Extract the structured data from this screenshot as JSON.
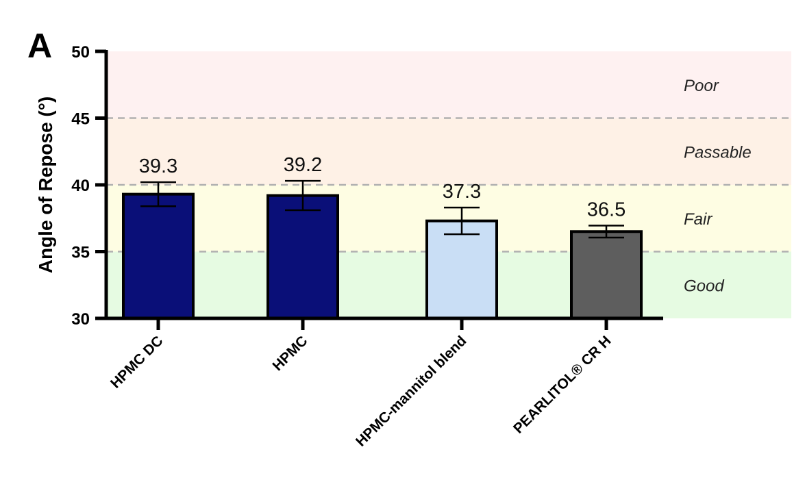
{
  "panel_label": "A",
  "chart_data": {
    "type": "bar",
    "categories": [
      "HPMC DC",
      "HPMC",
      "HPMC-mannitol blend",
      "PEARLITOL® CR H"
    ],
    "values": [
      39.3,
      39.2,
      37.3,
      36.5
    ],
    "errors": [
      0.9,
      1.1,
      1.0,
      0.45
    ],
    "data_labels": [
      "39.3",
      "39.2",
      "37.3",
      "36.5"
    ],
    "bar_colors": [
      "#0a0f78",
      "#0a0f78",
      "#c9def5",
      "#5e5e5e"
    ],
    "title": "",
    "xlabel": "",
    "ylabel": "Angle of Repose (°)",
    "ylim": [
      30,
      50
    ],
    "yticks": [
      "30",
      "35",
      "40",
      "45",
      "50"
    ],
    "zones": [
      {
        "label": "Good",
        "from": 30,
        "to": 35,
        "color": "#e6fbe2"
      },
      {
        "label": "Fair",
        "from": 35,
        "to": 40,
        "color": "#fefde3"
      },
      {
        "label": "Passable",
        "from": 40,
        "to": 45,
        "color": "#fef1e6"
      },
      {
        "label": "Poor",
        "from": 45,
        "to": 50,
        "color": "#fef1f1"
      }
    ],
    "zone_divider_color": "#b0b0b0",
    "grid": false,
    "legend": "none"
  }
}
